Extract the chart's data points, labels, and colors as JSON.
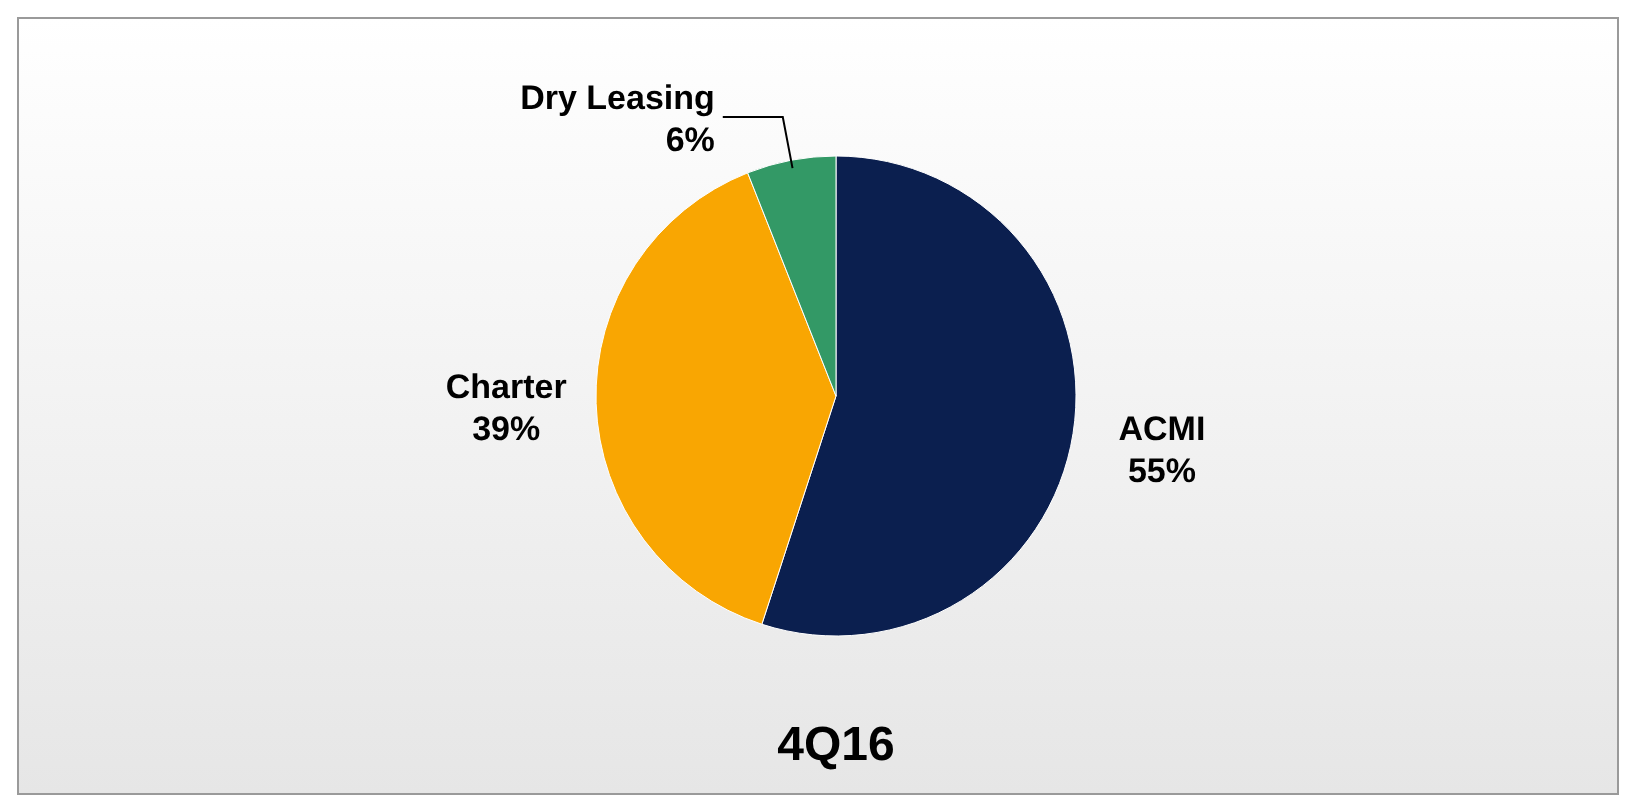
{
  "chart_data": {
    "type": "pie",
    "title": "4Q16",
    "categories": [
      "ACMI",
      "Charter",
      "Dry Leasing"
    ],
    "values": [
      55,
      39,
      6
    ],
    "colors": [
      "#0b1f4f",
      "#f9a602",
      "#339966"
    ],
    "value_labels": [
      "55%",
      "39%",
      "6%"
    ]
  }
}
